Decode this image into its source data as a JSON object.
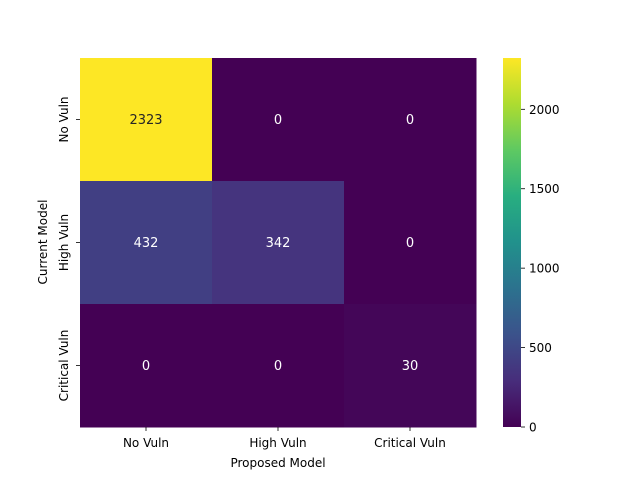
{
  "chart_data": {
    "type": "heatmap",
    "title": "",
    "xlabel": "Proposed Model",
    "ylabel": "Current Model",
    "x_categories": [
      "No Vuln",
      "High Vuln",
      "Critical Vuln"
    ],
    "y_categories": [
      "No Vuln",
      "High Vuln",
      "Critical Vuln"
    ],
    "values": [
      [
        2323,
        0,
        0
      ],
      [
        432,
        342,
        0
      ],
      [
        0,
        0,
        30
      ]
    ],
    "colormap": "viridis",
    "vmin": 0,
    "vmax": 2323,
    "colorbar_ticks": [
      0,
      500,
      1000,
      1500,
      2000
    ],
    "annotation_colors": {
      "on_light": "#262626",
      "on_dark": "#ffffff"
    }
  }
}
